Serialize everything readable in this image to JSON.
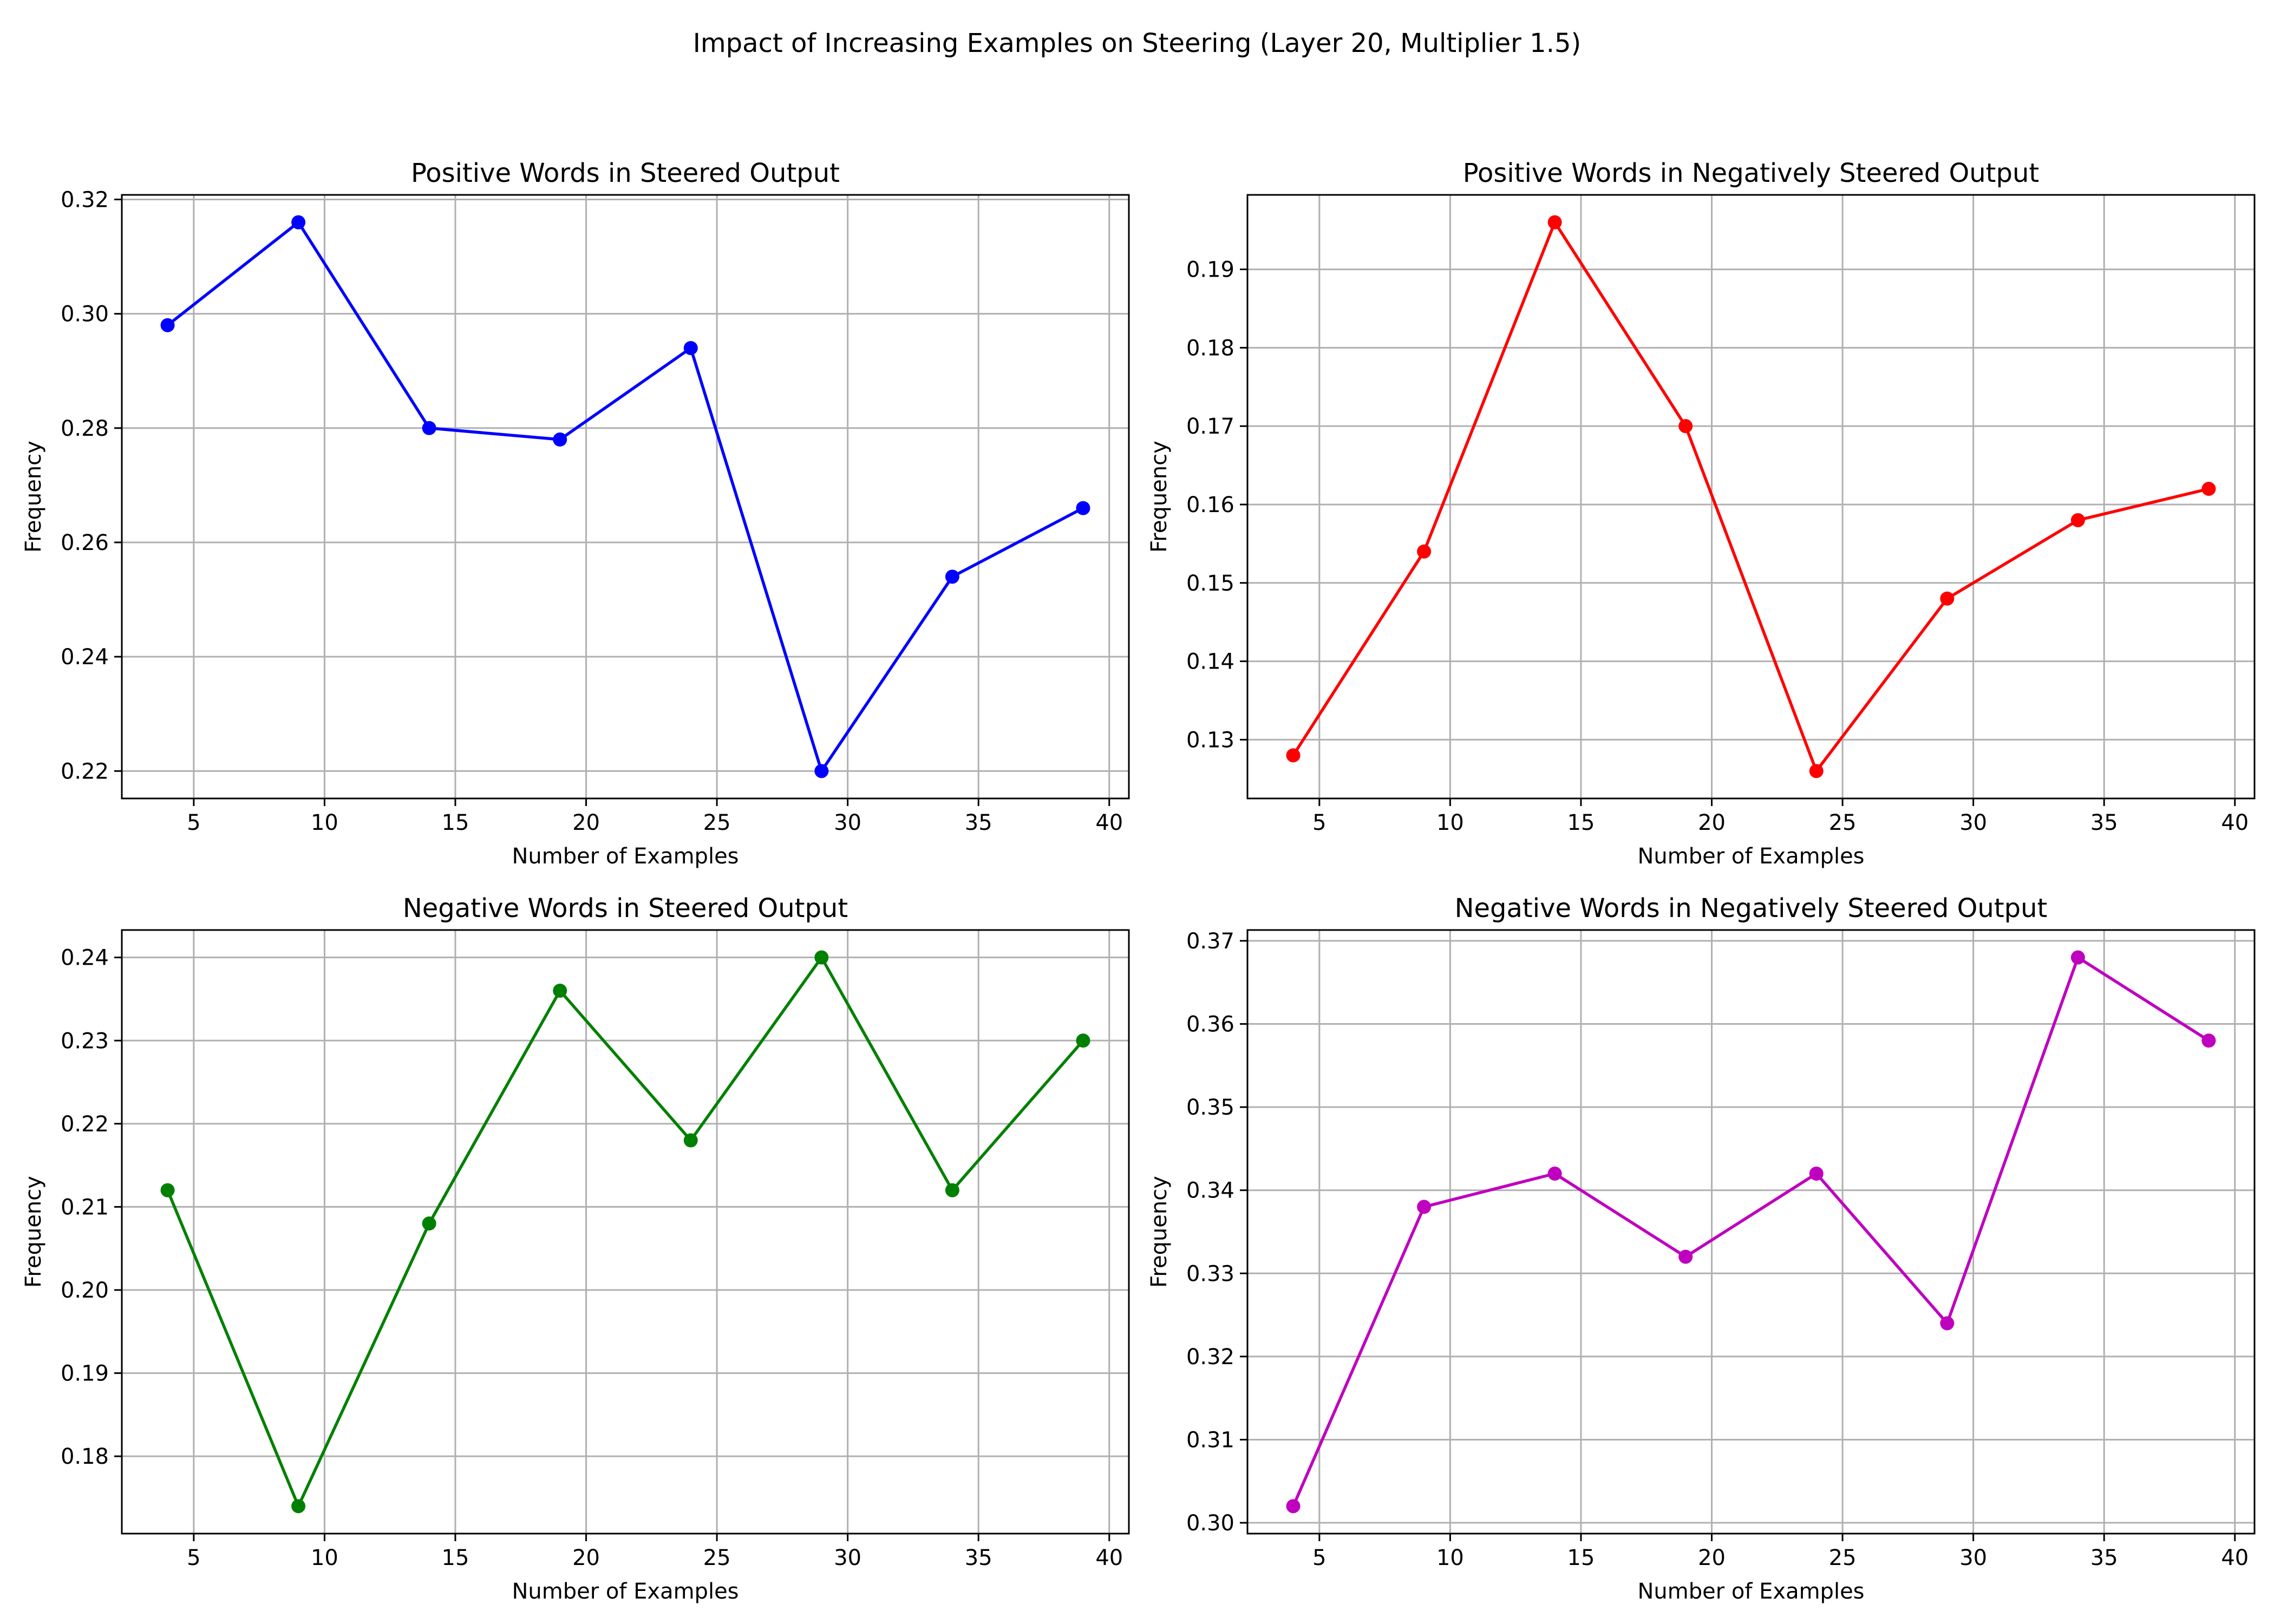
{
  "figure": {
    "suptitle": "Impact of Increasing Examples on Steering (Layer 20, Multiplier 1.5)"
  },
  "chart_data": [
    {
      "type": "line",
      "title": "Positive Words in Steered Output",
      "xlabel": "Number of Examples",
      "ylabel": "Frequency",
      "color": "#0000ff",
      "x": [
        4,
        9,
        14,
        19,
        24,
        29,
        34,
        39
      ],
      "values": [
        0.298,
        0.316,
        0.28,
        0.278,
        0.294,
        0.22,
        0.254,
        0.266
      ],
      "xlim": [
        2.25,
        40.75
      ],
      "ylim": [
        0.2152,
        0.3208
      ],
      "xticks": [
        5,
        10,
        15,
        20,
        25,
        30,
        35,
        40
      ],
      "xtick_labels": [
        "5",
        "10",
        "15",
        "20",
        "25",
        "30",
        "35",
        "40"
      ],
      "yticks": [
        0.22,
        0.24,
        0.26,
        0.28,
        0.3,
        0.32
      ],
      "ytick_labels": [
        "0.22",
        "0.24",
        "0.26",
        "0.28",
        "0.30",
        "0.32"
      ],
      "grid": true
    },
    {
      "type": "line",
      "title": "Positive Words in Negatively Steered Output",
      "xlabel": "Number of Examples",
      "ylabel": "Frequency",
      "color": "#ff0000",
      "x": [
        4,
        9,
        14,
        19,
        24,
        29,
        34,
        39
      ],
      "values": [
        0.128,
        0.154,
        0.196,
        0.17,
        0.126,
        0.148,
        0.158,
        0.162
      ],
      "xlim": [
        2.25,
        40.75
      ],
      "ylim": [
        0.1225,
        0.1995
      ],
      "xticks": [
        5,
        10,
        15,
        20,
        25,
        30,
        35,
        40
      ],
      "xtick_labels": [
        "5",
        "10",
        "15",
        "20",
        "25",
        "30",
        "35",
        "40"
      ],
      "yticks": [
        0.13,
        0.14,
        0.15,
        0.16,
        0.17,
        0.18,
        0.19
      ],
      "ytick_labels": [
        "0.13",
        "0.14",
        "0.15",
        "0.16",
        "0.17",
        "0.18",
        "0.19"
      ],
      "grid": true
    },
    {
      "type": "line",
      "title": "Negative Words in Steered Output",
      "xlabel": "Number of Examples",
      "ylabel": "Frequency",
      "color": "#008000",
      "x": [
        4,
        9,
        14,
        19,
        24,
        29,
        34,
        39
      ],
      "values": [
        0.212,
        0.174,
        0.208,
        0.236,
        0.218,
        0.24,
        0.212,
        0.23
      ],
      "xlim": [
        2.25,
        40.75
      ],
      "ylim": [
        0.1707,
        0.2433
      ],
      "xticks": [
        5,
        10,
        15,
        20,
        25,
        30,
        35,
        40
      ],
      "xtick_labels": [
        "5",
        "10",
        "15",
        "20",
        "25",
        "30",
        "35",
        "40"
      ],
      "yticks": [
        0.18,
        0.19,
        0.2,
        0.21,
        0.22,
        0.23,
        0.24
      ],
      "ytick_labels": [
        "0.18",
        "0.19",
        "0.20",
        "0.21",
        "0.22",
        "0.23",
        "0.24"
      ],
      "grid": true
    },
    {
      "type": "line",
      "title": "Negative Words in Negatively Steered Output",
      "xlabel": "Number of Examples",
      "ylabel": "Frequency",
      "color": "#bf00bf",
      "x": [
        4,
        9,
        14,
        19,
        24,
        29,
        34,
        39
      ],
      "values": [
        0.302,
        0.338,
        0.342,
        0.332,
        0.342,
        0.324,
        0.368,
        0.358
      ],
      "xlim": [
        2.25,
        40.75
      ],
      "ylim": [
        0.2987,
        0.3713
      ],
      "xticks": [
        5,
        10,
        15,
        20,
        25,
        30,
        35,
        40
      ],
      "xtick_labels": [
        "5",
        "10",
        "15",
        "20",
        "25",
        "30",
        "35",
        "40"
      ],
      "yticks": [
        0.3,
        0.31,
        0.32,
        0.33,
        0.34,
        0.35,
        0.36,
        0.37
      ],
      "ytick_labels": [
        "0.30",
        "0.31",
        "0.32",
        "0.33",
        "0.34",
        "0.35",
        "0.36",
        "0.37"
      ],
      "grid": true
    }
  ]
}
